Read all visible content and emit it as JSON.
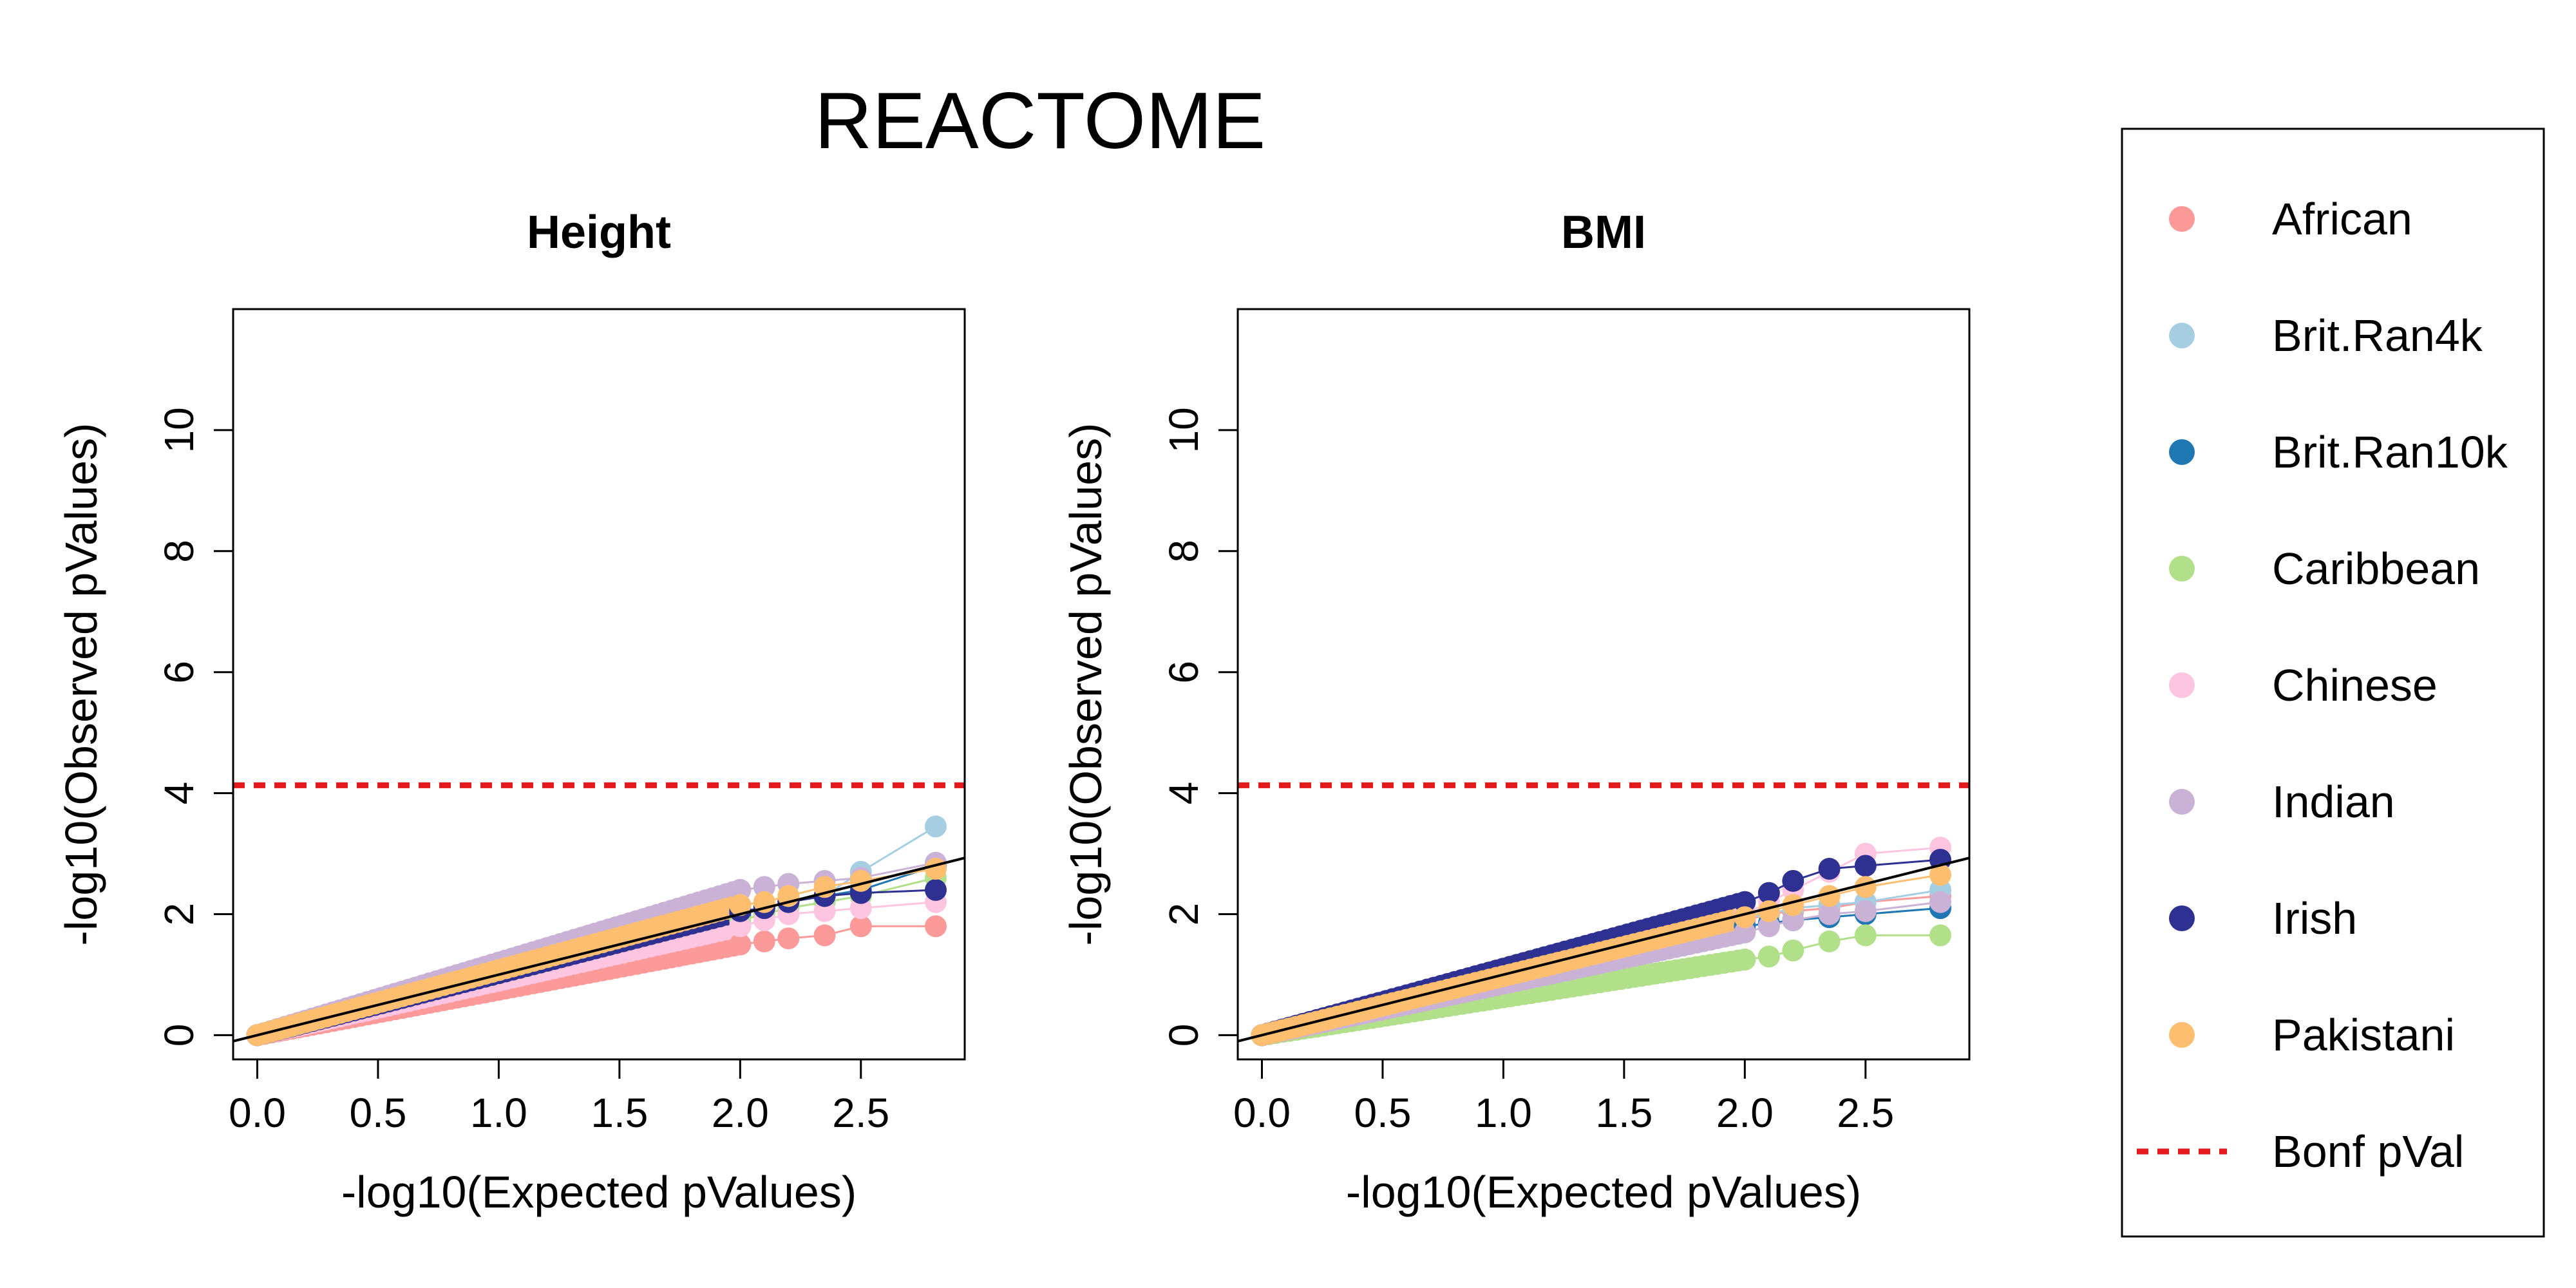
{
  "figure": {
    "title": "REACTOME"
  },
  "legend": {
    "items": [
      {
        "label": "African",
        "color": "#FB9A99",
        "marker": "dot"
      },
      {
        "label": "Brit.Ran4k",
        "color": "#A6CEE3",
        "marker": "dot"
      },
      {
        "label": "Brit.Ran10k",
        "color": "#1F78B4",
        "marker": "dot"
      },
      {
        "label": "Caribbean",
        "color": "#B2DF8A",
        "marker": "dot"
      },
      {
        "label": "Chinese",
        "color": "#FDC5E0",
        "marker": "dot"
      },
      {
        "label": "Indian",
        "color": "#CAB2D6",
        "marker": "dot"
      },
      {
        "label": "Irish",
        "color": "#2E3192",
        "marker": "dot"
      },
      {
        "label": "Pakistani",
        "color": "#FDBF6F",
        "marker": "dot"
      },
      {
        "label": "Bonf pVal",
        "color": "#E41A1C",
        "marker": "dashed-line"
      }
    ]
  },
  "chart_data": [
    {
      "type": "scatter",
      "title": "Height",
      "xlabel": "-log10(Expected pValues)",
      "ylabel": "-log10(Observed pValues)",
      "xlim": [
        -0.1,
        2.93
      ],
      "ylim": [
        -0.4,
        12
      ],
      "xticks": [
        0.0,
        0.5,
        1.0,
        1.5,
        2.0,
        2.5
      ],
      "xtick_labels": [
        "0.0",
        "0.5",
        "1.0",
        "1.5",
        "2.0",
        "2.5"
      ],
      "yticks": [
        0,
        2,
        4,
        6,
        8,
        10
      ],
      "ytick_labels": [
        "0",
        "2",
        "4",
        "6",
        "8",
        "10"
      ],
      "reference_line": {
        "slope": 1,
        "intercept": 0
      },
      "bonferroni_threshold": 4.13,
      "series_tail": [
        {
          "name": "African",
          "x": [
            2.0,
            2.1,
            2.2,
            2.35,
            2.5,
            2.81
          ],
          "y": [
            1.5,
            1.55,
            1.6,
            1.65,
            1.8,
            1.8
          ]
        },
        {
          "name": "Brit.Ran4k",
          "x": [
            2.0,
            2.1,
            2.2,
            2.35,
            2.5,
            2.81
          ],
          "y": [
            2.0,
            2.1,
            2.2,
            2.3,
            2.7,
            3.45
          ]
        },
        {
          "name": "Brit.Ran10k",
          "x": [
            2.0,
            2.1,
            2.2,
            2.35,
            2.5,
            2.81
          ],
          "y": [
            2.0,
            2.1,
            2.2,
            2.3,
            2.4,
            2.8
          ]
        },
        {
          "name": "Caribbean",
          "x": [
            2.0,
            2.1,
            2.2,
            2.35,
            2.5,
            2.81
          ],
          "y": [
            1.9,
            2.0,
            2.1,
            2.2,
            2.3,
            2.6
          ]
        },
        {
          "name": "Chinese",
          "x": [
            2.0,
            2.1,
            2.2,
            2.35,
            2.5,
            2.81
          ],
          "y": [
            1.8,
            1.9,
            2.0,
            2.05,
            2.1,
            2.2
          ]
        },
        {
          "name": "Indian",
          "x": [
            2.0,
            2.1,
            2.2,
            2.35,
            2.5,
            2.81
          ],
          "y": [
            2.4,
            2.45,
            2.5,
            2.55,
            2.6,
            2.85
          ]
        },
        {
          "name": "Irish",
          "x": [
            2.0,
            2.1,
            2.2,
            2.35,
            2.5,
            2.81
          ],
          "y": [
            2.05,
            2.1,
            2.2,
            2.3,
            2.35,
            2.4
          ]
        },
        {
          "name": "Pakistani",
          "x": [
            2.0,
            2.1,
            2.2,
            2.35,
            2.5,
            2.81
          ],
          "y": [
            2.15,
            2.2,
            2.3,
            2.45,
            2.55,
            2.75
          ]
        }
      ]
    },
    {
      "type": "scatter",
      "title": "BMI",
      "xlabel": "-log10(Expected pValues)",
      "ylabel": "-log10(Observed pValues)",
      "xlim": [
        -0.1,
        2.93
      ],
      "ylim": [
        -0.4,
        12
      ],
      "xticks": [
        0.0,
        0.5,
        1.0,
        1.5,
        2.0,
        2.5
      ],
      "xtick_labels": [
        "0.0",
        "0.5",
        "1.0",
        "1.5",
        "2.0",
        "2.5"
      ],
      "yticks": [
        0,
        2,
        4,
        6,
        8,
        10
      ],
      "ytick_labels": [
        "0",
        "2",
        "4",
        "6",
        "8",
        "10"
      ],
      "reference_line": {
        "slope": 1,
        "intercept": 0
      },
      "bonferroni_threshold": 4.13,
      "series_tail": [
        {
          "name": "African",
          "x": [
            2.0,
            2.1,
            2.2,
            2.35,
            2.5,
            2.81
          ],
          "y": [
            1.9,
            2.0,
            2.05,
            2.1,
            2.2,
            2.3
          ]
        },
        {
          "name": "Brit.Ran4k",
          "x": [
            2.0,
            2.1,
            2.2,
            2.35,
            2.5,
            2.81
          ],
          "y": [
            1.95,
            2.0,
            2.1,
            2.15,
            2.2,
            2.4
          ]
        },
        {
          "name": "Brit.Ran10k",
          "x": [
            2.0,
            2.1,
            2.2,
            2.35,
            2.5,
            2.81
          ],
          "y": [
            1.8,
            1.85,
            1.9,
            1.95,
            2.0,
            2.1
          ]
        },
        {
          "name": "Caribbean",
          "x": [
            2.0,
            2.1,
            2.2,
            2.35,
            2.5,
            2.81
          ],
          "y": [
            1.25,
            1.3,
            1.4,
            1.55,
            1.65,
            1.65
          ]
        },
        {
          "name": "Chinese",
          "x": [
            2.0,
            2.1,
            2.2,
            2.35,
            2.5,
            2.81
          ],
          "y": [
            2.0,
            2.2,
            2.4,
            2.7,
            3.0,
            3.1
          ]
        },
        {
          "name": "Indian",
          "x": [
            2.0,
            2.1,
            2.2,
            2.35,
            2.5,
            2.81
          ],
          "y": [
            1.7,
            1.8,
            1.9,
            2.0,
            2.05,
            2.2
          ]
        },
        {
          "name": "Irish",
          "x": [
            2.0,
            2.1,
            2.2,
            2.35,
            2.5,
            2.81
          ],
          "y": [
            2.2,
            2.35,
            2.55,
            2.75,
            2.8,
            2.9
          ]
        },
        {
          "name": "Pakistani",
          "x": [
            2.0,
            2.1,
            2.2,
            2.35,
            2.5,
            2.81
          ],
          "y": [
            1.95,
            2.05,
            2.15,
            2.3,
            2.45,
            2.65
          ]
        }
      ]
    }
  ]
}
